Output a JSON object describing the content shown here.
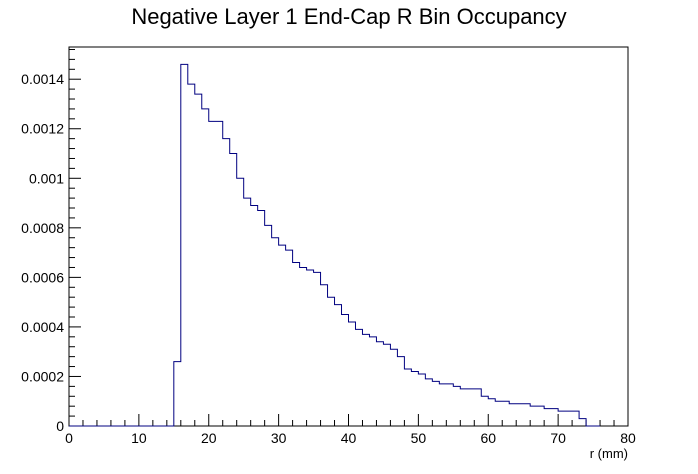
{
  "chart_data": {
    "type": "histogram",
    "title": "Negative Layer 1 End-Cap R Bin Occupancy",
    "xlabel": "r (mm)",
    "ylabel": "",
    "xlim": [
      0,
      80
    ],
    "ylim": [
      0,
      0.00153
    ],
    "bin_width": 1,
    "x_ticks": [
      0,
      10,
      20,
      30,
      40,
      50,
      60,
      70,
      80
    ],
    "y_ticks": [
      0,
      0.0002,
      0.0004,
      0.0006,
      0.0008,
      0.001,
      0.0012,
      0.0014
    ],
    "y_tick_labels": [
      "0",
      "0.0002",
      "0.0004",
      "0.0006",
      "0.0008",
      "0.001",
      "0.0012",
      "0.0014"
    ],
    "line_color": "#000080",
    "grid": false,
    "bins_start": [
      15,
      16,
      17,
      18,
      19,
      20,
      21,
      22,
      23,
      24,
      25,
      26,
      27,
      28,
      29,
      30,
      31,
      32,
      33,
      34,
      35,
      36,
      37,
      38,
      39,
      40,
      41,
      42,
      43,
      44,
      45,
      46,
      47,
      48,
      49,
      50,
      51,
      52,
      53,
      54,
      55,
      56,
      57,
      58,
      59,
      60,
      61,
      62,
      63,
      64,
      65,
      66,
      67,
      68,
      69,
      70,
      71,
      72,
      73,
      74,
      75
    ],
    "values": [
      0.00026,
      0.00146,
      0.00138,
      0.00134,
      0.00128,
      0.00123,
      0.00123,
      0.00116,
      0.0011,
      0.001,
      0.00092,
      0.00089,
      0.00087,
      0.00081,
      0.00076,
      0.00073,
      0.00071,
      0.00066,
      0.00064,
      0.00063,
      0.00062,
      0.00057,
      0.00052,
      0.00049,
      0.00045,
      0.00042,
      0.00039,
      0.00037,
      0.00036,
      0.00034,
      0.00033,
      0.00031,
      0.00028,
      0.00023,
      0.00022,
      0.00021,
      0.00019,
      0.00018,
      0.00017,
      0.00017,
      0.00016,
      0.00015,
      0.00015,
      0.00015,
      0.00012,
      0.00011,
      0.0001,
      0.0001,
      9e-05,
      9e-05,
      9e-05,
      8e-05,
      8e-05,
      7e-05,
      7e-05,
      6e-05,
      6e-05,
      6e-05,
      3e-05,
      0.0,
      0.0
    ]
  }
}
